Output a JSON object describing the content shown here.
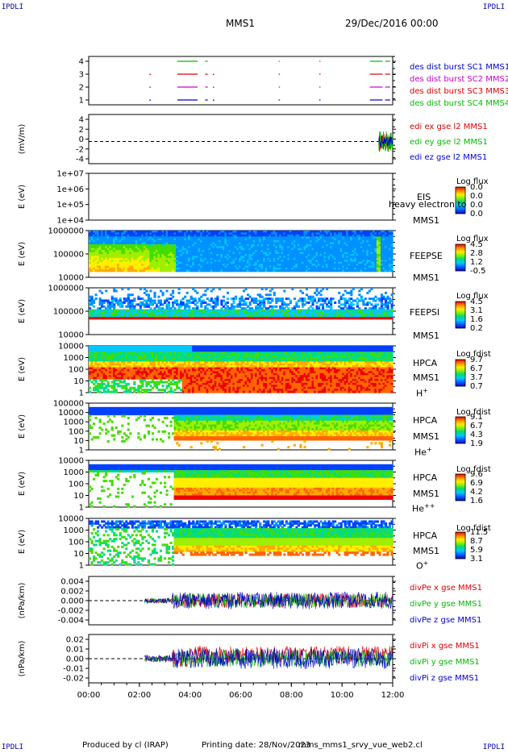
{
  "header": {
    "corner_tl": "IPDLI",
    "corner_tr": "IPDLI",
    "corner_bl": "IPDLI",
    "corner_br": "IPDLI",
    "spacecraft": "MMS1",
    "date_time": "29/Dec/2016 00:00"
  },
  "footer": {
    "produced_by": "Produced by cl (IRAP)",
    "printing_date": "Printing date: 28/Nov/2023",
    "file_name": "mms_mms1_srvy_vue_web2.cl"
  },
  "x_axis": {
    "ticks": [
      "00:00",
      "02:00",
      "04:00",
      "06:00",
      "08:00",
      "10:00",
      "12:00"
    ],
    "range_hours": [
      0,
      12
    ]
  },
  "colors": {
    "frame": "#000000",
    "series_red": "#dd0000",
    "series_green": "#00bb00",
    "series_blue": "#0000cc",
    "series_magenta": "#cc00cc",
    "label_blue": "#0000aa"
  },
  "panels": {
    "p1": {
      "y_ticks": [
        "4",
        "3",
        "2",
        "1"
      ],
      "legend": [
        "des dist burst SC1 MMS1",
        "des dist burst SC2 MMS2",
        "des dist burst SC3 MMS3",
        "des dist burst SC4 MMS4"
      ]
    },
    "p2": {
      "ylabel": "(mV/m)",
      "y_ticks": [
        "4",
        "2",
        "0",
        "-2",
        "-4"
      ],
      "legend": [
        "edi ex gse l2 MMS1",
        "edi ey gse l2 MMS1",
        "edi ez gse l2 MMS1"
      ]
    },
    "p3": {
      "ylabel": "E (eV)",
      "y_ticks": [
        "1e+07",
        "1e+06",
        "1e+05",
        "1e+04"
      ],
      "instrument": "EIS",
      "overlay": "heavy electron to",
      "sc": "MMS1",
      "cbar_title": "Log flux",
      "cbar_ticks": [
        "0.0",
        "0.0",
        "0.0",
        "0.0"
      ]
    },
    "p4": {
      "ylabel": "E (eV)",
      "y_ticks": [
        "1000000",
        "100000",
        "10000"
      ],
      "instrument": "FEEPSE",
      "sc": "MMS1",
      "cbar_title": "Log flux",
      "cbar_ticks": [
        "4.5",
        "2.8",
        "1.2",
        "-0.5"
      ]
    },
    "p5": {
      "ylabel": "E (eV)",
      "y_ticks": [
        "1000000",
        "100000",
        "10000"
      ],
      "instrument": "FEEPSI",
      "sc": "MMS1",
      "cbar_title": "Log flux",
      "cbar_ticks": [
        "4.5",
        "3.1",
        "1.6",
        "0.2"
      ]
    },
    "p6": {
      "ylabel": "E (eV)",
      "y_ticks": [
        "10000",
        "1000",
        "100",
        "10",
        "1"
      ],
      "instrument": "HPCA",
      "sc": "MMS1",
      "species": "H",
      "species_sup": "+",
      "cbar_title": "Log fdist",
      "cbar_ticks": [
        "9.7",
        "6.7",
        "3.7",
        "0.7"
      ]
    },
    "p7": {
      "ylabel": "E (eV)",
      "y_ticks": [
        "100000",
        "10000",
        "1000",
        "100",
        "10",
        "1"
      ],
      "instrument": "HPCA",
      "sc": "MMS1",
      "species": "He",
      "species_sup": "+",
      "cbar_title": "Log fdist",
      "cbar_ticks": [
        "9.1",
        "6.7",
        "4.3",
        "1.9"
      ]
    },
    "p8": {
      "ylabel": "E (eV)",
      "y_ticks": [
        "10000",
        "1000",
        "100",
        "10",
        "1"
      ],
      "instrument": "HPCA",
      "sc": "MMS1",
      "species": "He",
      "species_sup": "++",
      "cbar_title": "Log fdist",
      "cbar_ticks": [
        "9.6",
        "6.9",
        "4.2",
        "1.6"
      ]
    },
    "p9": {
      "ylabel": "E (eV)",
      "y_ticks": [
        "10000",
        "1000",
        "100",
        "10",
        "1"
      ],
      "instrument": "HPCA",
      "sc": "MMS1",
      "species": "O",
      "species_sup": "+",
      "cbar_title": "Log fdist",
      "cbar_ticks": [
        "11.5",
        "8.7",
        "5.9",
        "3.1"
      ]
    },
    "p10": {
      "ylabel": "(nPa/km)",
      "y_ticks": [
        "0.004",
        "0.002",
        "0.000",
        "-0.002",
        "-0.004"
      ],
      "legend": [
        "divPe x gse MMS1",
        "divPe y gse MMS1",
        "divPe z gse MMS1"
      ]
    },
    "p11": {
      "ylabel": "(nPa/km)",
      "y_ticks": [
        "0.02",
        "0.01",
        "0.00",
        "-0.01",
        "-0.02"
      ],
      "legend": [
        "divPi x gse MMS1",
        "divPi y gse MMS1",
        "divPi z gse MMS1"
      ]
    }
  },
  "chart_data": {
    "type": "heatmap",
    "x_range_hours": [
      0,
      12
    ],
    "burst_intervals_hours": [
      [
        3.5,
        4.3
      ],
      [
        4.6,
        4.7
      ],
      [
        7.5,
        7.55
      ],
      [
        9.1,
        9.15
      ],
      [
        11.1,
        11.6
      ],
      [
        11.7,
        11.9
      ]
    ],
    "edi_active_hours": [
      11.45,
      12.0
    ],
    "feeps_electron_enhancement_end_hours": 3.4,
    "hpca_h_low_energy_gap_end_hours": 3.6,
    "hpca_heavy_onset_hours": 3.3
  }
}
